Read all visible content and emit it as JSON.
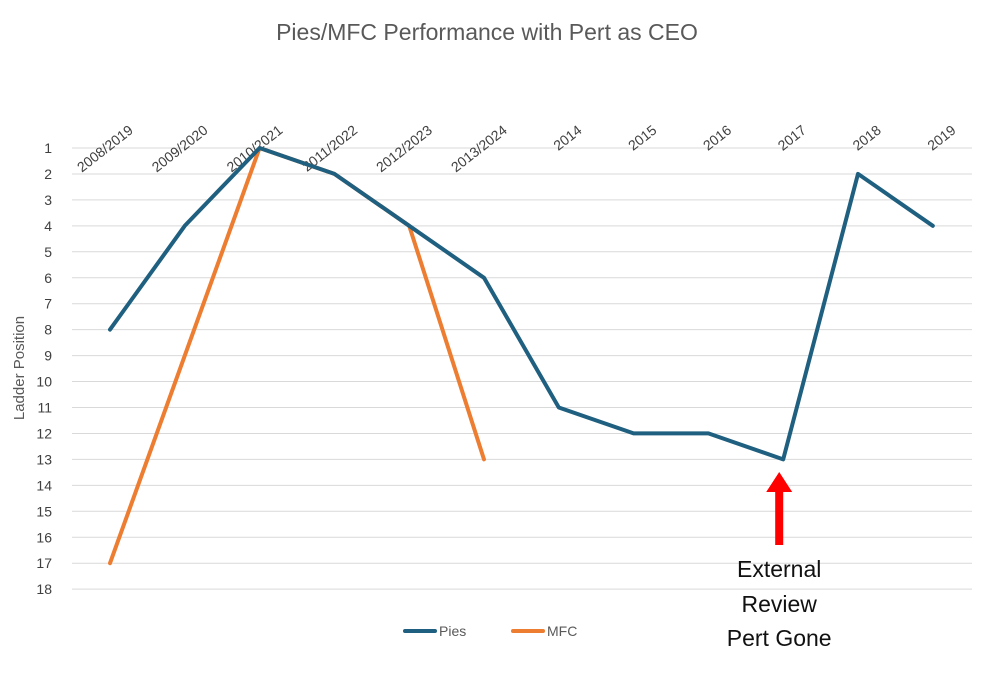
{
  "chart_data": {
    "type": "line",
    "title": "Pies/MFC Performance with Pert as CEO",
    "xlabel": "",
    "ylabel": "Ladder Position",
    "categories": [
      "2008/2019",
      "2009/2020",
      "2010/2021",
      "2011/2022",
      "2012/2023",
      "2013/2024",
      "2014",
      "2015",
      "2016",
      "2017",
      "2018",
      "2019"
    ],
    "y_ticks": [
      1,
      2,
      3,
      4,
      5,
      6,
      7,
      8,
      9,
      10,
      11,
      12,
      13,
      14,
      15,
      16,
      17,
      18
    ],
    "ylim": [
      1,
      18
    ],
    "y_inverted": true,
    "x_axis_position": "top",
    "grid": true,
    "legend_position": "bottom",
    "series": [
      {
        "name": "Pies",
        "color": "#1f5f7f",
        "values": [
          8,
          4,
          1,
          2,
          4,
          6,
          11,
          12,
          12,
          13,
          2,
          4
        ]
      },
      {
        "name": "MFC",
        "color": "#ed7d31",
        "values": [
          17,
          9,
          1,
          2,
          4,
          13,
          null,
          null,
          null,
          null,
          null,
          null
        ]
      }
    ],
    "annotation": {
      "lines": [
        "External",
        "Review",
        "Pert Gone"
      ],
      "category": "2017",
      "arrow_color": "#ff0000"
    }
  }
}
